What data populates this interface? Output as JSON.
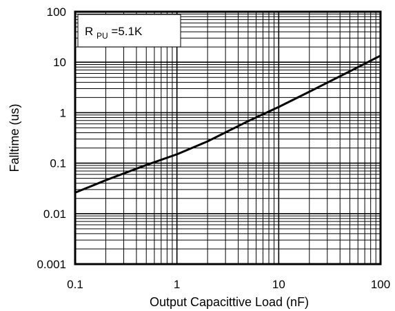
{
  "chart_data": {
    "type": "line",
    "xscale": "log",
    "yscale": "log",
    "xlim": [
      0.1,
      100
    ],
    "ylim": [
      0.001,
      100
    ],
    "xlabel": "Output Capacittive Load (nF)",
    "ylabel": "Falltime (us)",
    "xticks": [
      0.1,
      1,
      10,
      100
    ],
    "yticks": [
      0.001,
      0.01,
      0.1,
      1,
      10,
      100
    ],
    "xtick_labels": [
      "0.1",
      "1",
      "10",
      "100"
    ],
    "ytick_labels": [
      "0.001",
      "0.01",
      "0.1",
      "1",
      "10",
      "100"
    ],
    "grid": true,
    "annotation": {
      "main": "R",
      "sub": "PU",
      "rest": "=5.1K"
    },
    "series": [
      {
        "x": [
          0.1,
          0.2,
          0.5,
          1,
          2,
          5,
          10,
          20,
          50,
          100
        ],
        "y": [
          0.026,
          0.046,
          0.092,
          0.15,
          0.27,
          0.68,
          1.3,
          2.6,
          6.6,
          13.5
        ],
        "color": "#000000"
      }
    ]
  }
}
